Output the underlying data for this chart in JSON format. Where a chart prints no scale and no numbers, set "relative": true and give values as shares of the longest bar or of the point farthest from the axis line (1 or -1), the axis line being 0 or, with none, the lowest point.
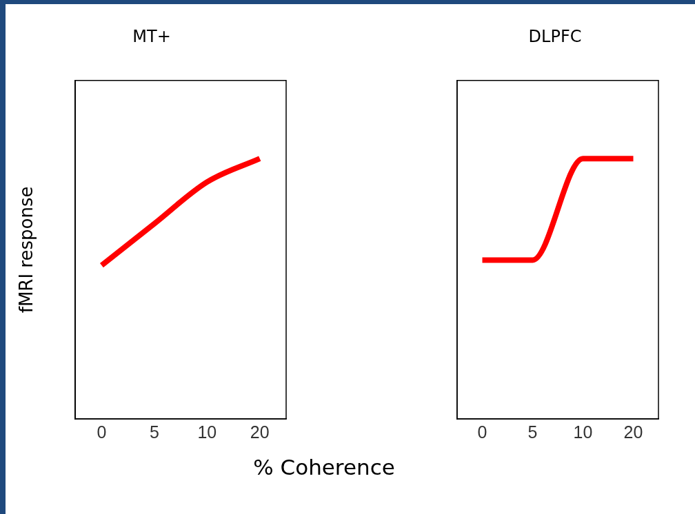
{
  "chart_data": [
    {
      "type": "line",
      "title": "MT+",
      "xlabel": "% Coherence",
      "ylabel": "fMRI response",
      "categories": [
        "0",
        "5",
        "10",
        "20"
      ],
      "relative": true,
      "grid": false,
      "legend": false,
      "marker": "none",
      "line_style": "solid",
      "series": [
        {
          "color": "#ff0000",
          "values": [
            0.59,
            0.75,
            0.91,
            1
          ]
        }
      ]
    },
    {
      "type": "line",
      "title": "DLPFC",
      "categories": [
        "0",
        "5",
        "10",
        "20"
      ],
      "relative": true,
      "grid": false,
      "legend": false,
      "marker": "none",
      "line_style": "solid",
      "series": [
        {
          "color": "#ff0000",
          "values": [
            0.61,
            0.61,
            1,
            1
          ]
        }
      ]
    }
  ]
}
